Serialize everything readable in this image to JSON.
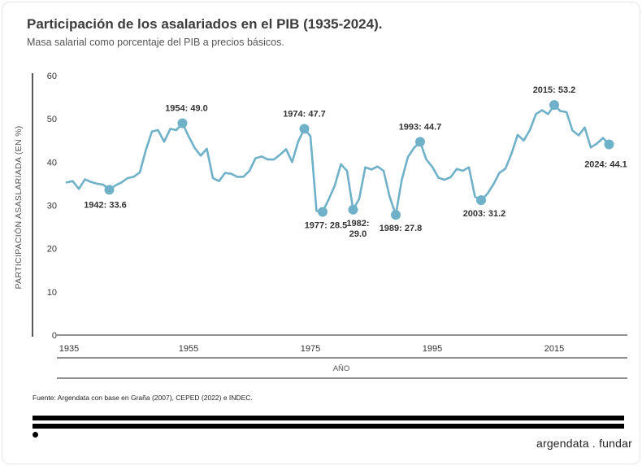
{
  "header": {
    "title": "Participación de los asalariados en el PIB (1935-2024).",
    "subtitle": "Masa salarial como porcentaje del PIB a precios básicos."
  },
  "footer": {
    "source": "Fuente: Argendata con base en Graña (2007), CEPED (2022) e INDEC.",
    "brand": "argendata . fundar"
  },
  "chart_data": {
    "type": "line",
    "xlabel": "AÑO",
    "ylabel": "PARTICIPACIÓN ASASLARIADA  (EN %)",
    "ylim": [
      0,
      60
    ],
    "yticks": [
      0,
      10,
      20,
      30,
      40,
      50,
      60
    ],
    "xticks": [
      1935,
      1955,
      1975,
      1995,
      2015
    ],
    "color": "#6fb1c8",
    "grid": false,
    "series": [
      {
        "x": [
          1935,
          1936,
          1937,
          1938,
          1939,
          1940,
          1941,
          1942,
          1943,
          1944,
          1945,
          1946,
          1947,
          1948,
          1949,
          1950,
          1951,
          1952,
          1953,
          1954,
          1955,
          1956,
          1957,
          1958,
          1959,
          1960,
          1961,
          1962,
          1963,
          1964,
          1965,
          1966,
          1967,
          1968,
          1969,
          1970,
          1971,
          1972,
          1973,
          1974,
          1975,
          1976,
          1977,
          1978,
          1979,
          1980,
          1981,
          1982,
          1983,
          1984,
          1985,
          1986,
          1987,
          1988,
          1989,
          1990,
          1991,
          1992,
          1993,
          1994,
          1995,
          1996,
          1997,
          1998,
          1999,
          2000,
          2001,
          2002,
          2003,
          2004,
          2005,
          2006,
          2007,
          2008,
          2009,
          2010,
          2011,
          2012,
          2013,
          2014,
          2015,
          2016,
          2017,
          2018,
          2019,
          2020,
          2021,
          2022,
          2023,
          2024
        ],
        "y": [
          35.3,
          35.6,
          33.8,
          36.0,
          35.4,
          35.0,
          34.8,
          33.6,
          34.6,
          35.3,
          36.3,
          36.6,
          37.6,
          42.8,
          47.1,
          47.4,
          44.7,
          47.7,
          47.4,
          49.0,
          46.0,
          43.3,
          41.5,
          43.1,
          36.3,
          35.6,
          37.5,
          37.3,
          36.6,
          36.6,
          38.0,
          40.9,
          41.3,
          40.6,
          40.6,
          41.7,
          43.0,
          40.0,
          44.8,
          47.7,
          46.0,
          28.7,
          28.5,
          31.4,
          34.6,
          39.5,
          38.0,
          29.0,
          31.5,
          38.8,
          38.3,
          39.0,
          38.0,
          32.0,
          27.8,
          36.0,
          41.2,
          43.3,
          44.7,
          40.6,
          38.9,
          36.4,
          35.9,
          36.5,
          38.4,
          38.0,
          38.8,
          32.0,
          31.2,
          32.6,
          34.8,
          37.5,
          38.5,
          42.0,
          46.3,
          45.0,
          47.4,
          51.1,
          52.0,
          51.1,
          53.2,
          51.8,
          51.6,
          47.3,
          46.2,
          48.0,
          43.4,
          44.3,
          45.6,
          44.1
        ]
      }
    ],
    "annotations": [
      {
        "x": 1942,
        "y": 33.6,
        "label": "1942:  33.6"
      },
      {
        "x": 1954,
        "y": 49.0,
        "label": "1954:  49.0"
      },
      {
        "x": 1974,
        "y": 47.7,
        "label": "1974:  47.7"
      },
      {
        "x": 1977,
        "y": 28.5,
        "label": "1977:  28.5"
      },
      {
        "x": 1982,
        "y": 29.0,
        "label": "1982:\n29.0"
      },
      {
        "x": 1989,
        "y": 27.8,
        "label": "1989:  27.8"
      },
      {
        "x": 1993,
        "y": 44.7,
        "label": "1993:  44.7"
      },
      {
        "x": 2003,
        "y": 31.2,
        "label": "2003:  31.2"
      },
      {
        "x": 2015,
        "y": 53.2,
        "label": "2015:  53.2"
      },
      {
        "x": 2024,
        "y": 44.1,
        "label": "2024:  44.1"
      }
    ]
  }
}
